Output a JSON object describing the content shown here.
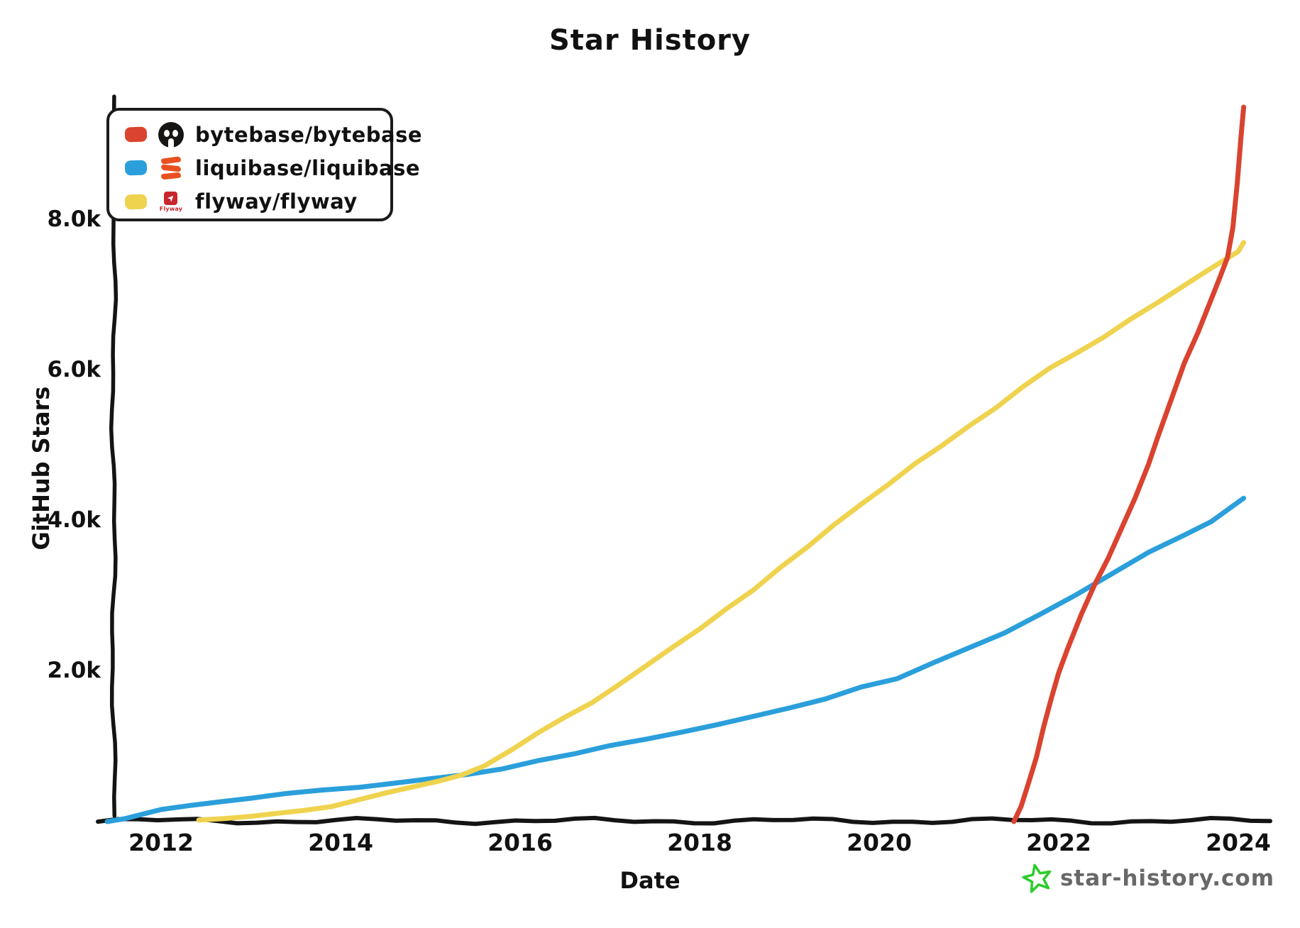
{
  "title": "Star History",
  "legend": {
    "items": [
      {
        "label": "bytebase/bytebase",
        "icon": "bytebase-avatar",
        "swatch_color": "#D9432F"
      },
      {
        "label": "liquibase/liquibase",
        "icon": "liquibase-logo",
        "swatch_color": "#2B9FDB"
      },
      {
        "label": "flyway/flyway",
        "icon": "flyway-logo",
        "icon_caption": "Flyway",
        "swatch_color": "#EFD34F"
      }
    ]
  },
  "footer": {
    "site": "star-history.com",
    "star_icon_color": "#2ECC2E"
  },
  "colors": {
    "axis": "#141414",
    "text": "#111111",
    "footer_text": "#686868",
    "flyway_brand_red": "#C9252D",
    "liquibase_brand_orange": "#E8501F"
  },
  "chart_data": {
    "type": "line",
    "title": "Star History",
    "xlabel": "Date",
    "ylabel": "GitHub Stars",
    "x_unit": "year (decimal)",
    "xlim": [
      2011.4,
      2024.5
    ],
    "ylim": [
      0,
      9600
    ],
    "grid": false,
    "legend_position": "top-left",
    "x_ticks": [
      {
        "value": 2012,
        "label": "2012"
      },
      {
        "value": 2014,
        "label": "2014"
      },
      {
        "value": 2016,
        "label": "2016"
      },
      {
        "value": 2018,
        "label": "2018"
      },
      {
        "value": 2020,
        "label": "2020"
      },
      {
        "value": 2022,
        "label": "2022"
      },
      {
        "value": 2024,
        "label": "2024"
      }
    ],
    "y_ticks": [
      {
        "value": 2000,
        "label": "2.0k"
      },
      {
        "value": 4000,
        "label": "4.0k"
      },
      {
        "value": 6000,
        "label": "6.0k"
      },
      {
        "value": 8000,
        "label": "8.0k"
      }
    ],
    "series": [
      {
        "name": "bytebase/bytebase",
        "color": "#D9432F",
        "points": [
          [
            2021.5,
            0
          ],
          [
            2021.58,
            200
          ],
          [
            2021.66,
            500
          ],
          [
            2021.75,
            850
          ],
          [
            2021.83,
            1250
          ],
          [
            2021.92,
            1650
          ],
          [
            2022.0,
            1980
          ],
          [
            2022.1,
            2300
          ],
          [
            2022.25,
            2750
          ],
          [
            2022.4,
            3150
          ],
          [
            2022.55,
            3500
          ],
          [
            2022.7,
            3900
          ],
          [
            2022.85,
            4300
          ],
          [
            2023.0,
            4750
          ],
          [
            2023.1,
            5100
          ],
          [
            2023.25,
            5600
          ],
          [
            2023.4,
            6100
          ],
          [
            2023.55,
            6500
          ],
          [
            2023.7,
            6950
          ],
          [
            2023.8,
            7250
          ],
          [
            2023.88,
            7500
          ],
          [
            2023.94,
            7900
          ],
          [
            2023.99,
            8500
          ],
          [
            2024.03,
            9100
          ],
          [
            2024.06,
            9500
          ]
        ]
      },
      {
        "name": "liquibase/liquibase",
        "color": "#2B9FDB",
        "points": [
          [
            2011.4,
            0
          ],
          [
            2011.6,
            40
          ],
          [
            2011.8,
            100
          ],
          [
            2012.0,
            160
          ],
          [
            2012.3,
            210
          ],
          [
            2012.6,
            255
          ],
          [
            2013.0,
            310
          ],
          [
            2013.4,
            375
          ],
          [
            2013.8,
            420
          ],
          [
            2014.2,
            455
          ],
          [
            2014.6,
            510
          ],
          [
            2015.0,
            570
          ],
          [
            2015.4,
            625
          ],
          [
            2015.8,
            700
          ],
          [
            2016.2,
            810
          ],
          [
            2016.6,
            900
          ],
          [
            2017.0,
            1010
          ],
          [
            2017.4,
            1095
          ],
          [
            2017.8,
            1190
          ],
          [
            2018.2,
            1290
          ],
          [
            2018.6,
            1400
          ],
          [
            2019.0,
            1510
          ],
          [
            2019.4,
            1630
          ],
          [
            2019.8,
            1790
          ],
          [
            2020.2,
            1900
          ],
          [
            2020.6,
            2110
          ],
          [
            2021.0,
            2310
          ],
          [
            2021.4,
            2510
          ],
          [
            2021.8,
            2760
          ],
          [
            2022.2,
            3020
          ],
          [
            2022.6,
            3300
          ],
          [
            2023.0,
            3580
          ],
          [
            2023.4,
            3810
          ],
          [
            2023.7,
            3990
          ],
          [
            2024.06,
            4300
          ]
        ]
      },
      {
        "name": "flyway/flyway",
        "color": "#EFD34F",
        "points": [
          [
            2012.42,
            20
          ],
          [
            2012.7,
            40
          ],
          [
            2013.0,
            70
          ],
          [
            2013.3,
            110
          ],
          [
            2013.6,
            150
          ],
          [
            2013.9,
            200
          ],
          [
            2014.2,
            290
          ],
          [
            2014.5,
            380
          ],
          [
            2014.8,
            460
          ],
          [
            2015.1,
            540
          ],
          [
            2015.35,
            620
          ],
          [
            2015.6,
            740
          ],
          [
            2015.9,
            950
          ],
          [
            2016.2,
            1180
          ],
          [
            2016.5,
            1390
          ],
          [
            2016.8,
            1580
          ],
          [
            2017.1,
            1820
          ],
          [
            2017.4,
            2070
          ],
          [
            2017.7,
            2320
          ],
          [
            2018.0,
            2560
          ],
          [
            2018.3,
            2830
          ],
          [
            2018.6,
            3080
          ],
          [
            2018.9,
            3380
          ],
          [
            2019.2,
            3650
          ],
          [
            2019.5,
            3950
          ],
          [
            2019.8,
            4220
          ],
          [
            2020.1,
            4480
          ],
          [
            2020.4,
            4760
          ],
          [
            2020.7,
            5000
          ],
          [
            2021.0,
            5260
          ],
          [
            2021.3,
            5500
          ],
          [
            2021.6,
            5780
          ],
          [
            2021.9,
            6030
          ],
          [
            2022.2,
            6230
          ],
          [
            2022.5,
            6440
          ],
          [
            2022.8,
            6680
          ],
          [
            2023.1,
            6900
          ],
          [
            2023.4,
            7130
          ],
          [
            2023.7,
            7360
          ],
          [
            2024.0,
            7580
          ],
          [
            2024.06,
            7700
          ]
        ]
      }
    ]
  }
}
